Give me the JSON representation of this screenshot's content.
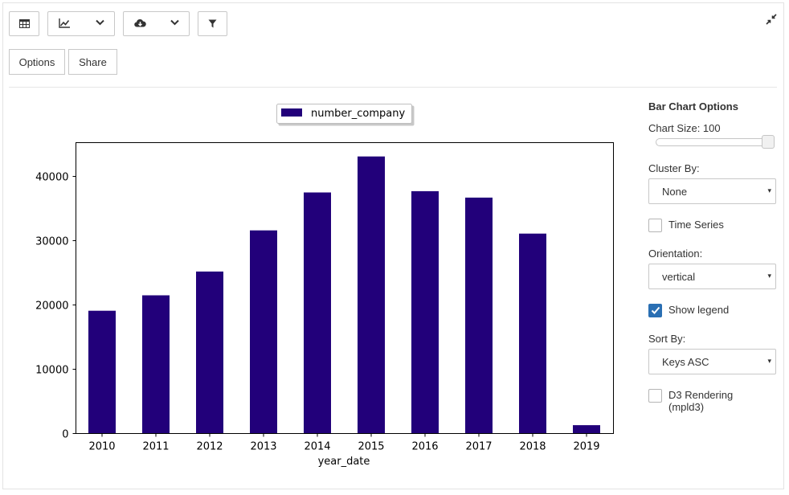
{
  "toolbar": {
    "table_icon": "table-icon",
    "chart_icon": "line-chart-icon",
    "download_icon": "cloud-download-icon",
    "filter_icon": "filter-icon",
    "collapse_icon": "compress-icon"
  },
  "actions": {
    "options_label": "Options",
    "share_label": "Share"
  },
  "chart_data": {
    "type": "bar",
    "categories": [
      "2010",
      "2011",
      "2012",
      "2013",
      "2014",
      "2015",
      "2016",
      "2017",
      "2018",
      "2019"
    ],
    "series": [
      {
        "name": "number_company",
        "values": [
          19100,
          21500,
          25200,
          31600,
          37500,
          43100,
          37700,
          36700,
          31100,
          1300
        ],
        "color": "#22007a"
      }
    ],
    "xlabel": "year_date",
    "ylabel": "",
    "ylim": [
      0,
      45000
    ],
    "yticks": [
      0,
      10000,
      20000,
      30000,
      40000
    ],
    "ytick_labels": [
      "0",
      "10000",
      "20000",
      "30000",
      "40000"
    ],
    "legend": "top-center",
    "grid": false
  },
  "options": {
    "title": "Bar Chart Options",
    "chart_size_label": "Chart Size: 100",
    "chart_size_value": 100,
    "cluster_by_label": "Cluster By:",
    "cluster_by_value": "None",
    "time_series_label": "Time Series",
    "time_series_checked": false,
    "orientation_label": "Orientation:",
    "orientation_value": "vertical",
    "show_legend_label": "Show legend",
    "show_legend_checked": true,
    "sort_by_label": "Sort By:",
    "sort_by_value": "Keys ASC",
    "d3_label_line1": "D3 Rendering",
    "d3_label_line2": "(mpld3)",
    "d3_checked": false,
    "dropdown_arrow": "▾"
  }
}
